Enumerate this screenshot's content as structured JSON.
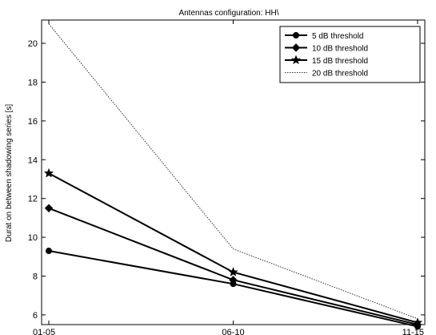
{
  "chart_data": {
    "type": "line",
    "title": "Antennas configuration: HH\\",
    "xlabel": "",
    "ylabel": "Durat on between shadowing series [s]",
    "categories": [
      "01-05",
      "06-10",
      "11-15"
    ],
    "ylim": [
      5.5,
      21.2
    ],
    "yticks": [
      6,
      8,
      10,
      12,
      14,
      16,
      18,
      20
    ],
    "grid": false,
    "legend_position": "top-right",
    "series": [
      {
        "name": "5 dB threshold",
        "values": [
          9.3,
          7.6,
          5.4
        ],
        "marker": "circle",
        "dash": "solid",
        "color": "#000000"
      },
      {
        "name": "10 dB threshold",
        "values": [
          11.5,
          7.8,
          5.5
        ],
        "marker": "diamond",
        "dash": "solid",
        "color": "#000000"
      },
      {
        "name": "15 dB threshold",
        "values": [
          13.3,
          8.2,
          5.6
        ],
        "marker": "star",
        "dash": "solid",
        "color": "#000000"
      },
      {
        "name": "20 dB threshold",
        "values": [
          21.0,
          9.4,
          5.8
        ],
        "marker": "none",
        "dash": "dotted",
        "color": "#333333"
      }
    ]
  }
}
